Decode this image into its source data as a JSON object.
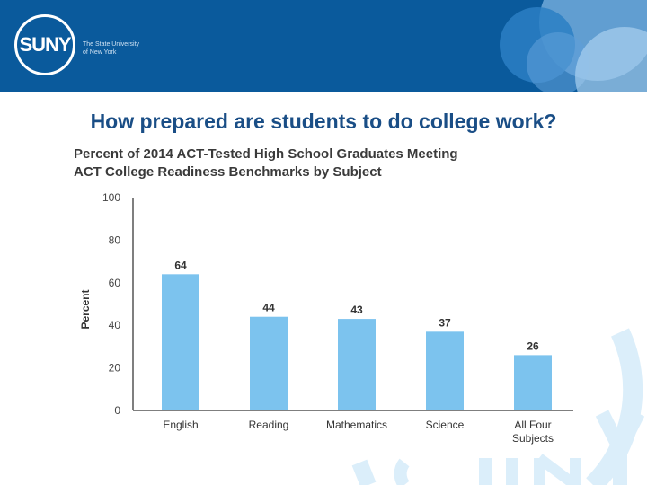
{
  "header": {
    "logo_text": "SUNY",
    "logo_subtitle_line1": "The State University",
    "logo_subtitle_line2": "of New York",
    "brand_color": "#0a5a9c"
  },
  "slide": {
    "title": "How prepared are students to do college work?",
    "title_color": "#1a4e86"
  },
  "chart_data": {
    "type": "bar",
    "title_line1": "Percent of 2014 ACT-Tested High School Graduates Meeting",
    "title_line2": "ACT College Readiness Benchmarks by Subject",
    "ylabel": "Percent",
    "xlabel": "",
    "ylim": [
      0,
      100
    ],
    "yticks": [
      0,
      20,
      40,
      60,
      80,
      100
    ],
    "categories": [
      [
        "English"
      ],
      [
        "Reading"
      ],
      [
        "Mathematics"
      ],
      [
        "Science"
      ],
      [
        "All Four",
        "Subjects"
      ]
    ],
    "values": [
      64,
      44,
      43,
      37,
      26
    ],
    "bar_color": "#7cc3ee",
    "grid": false
  }
}
